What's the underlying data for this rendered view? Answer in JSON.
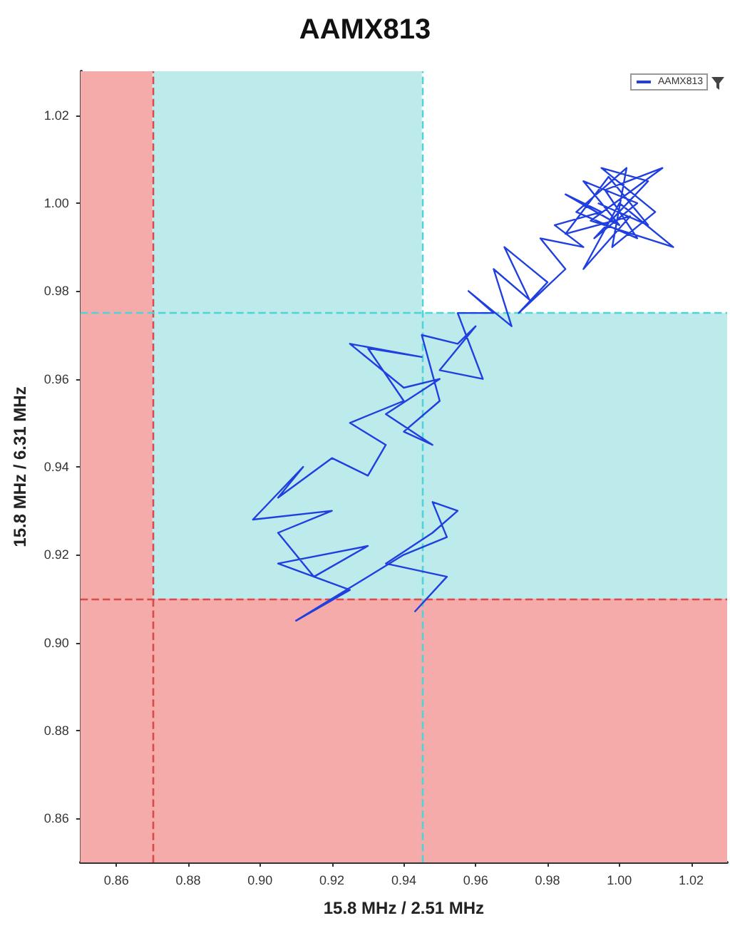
{
  "chart_data": {
    "type": "line",
    "title": "AAMX813",
    "xlabel": "15.8 MHz / 2.51 MHz",
    "ylabel": "15.8 MHz / 6.31 MHz",
    "xlim": [
      0.85,
      1.03
    ],
    "ylim": [
      0.85,
      1.03
    ],
    "xticks": [
      0.86,
      0.88,
      {
        "value": 0.9,
        "label": "0.90"
      },
      0.92,
      0.94,
      0.96,
      0.98,
      {
        "value": 1,
        "label": "1.00"
      },
      1.02
    ],
    "yticks": [
      0.86,
      0.88,
      {
        "value": 0.9,
        "label": "0.90"
      },
      0.92,
      0.94,
      0.96,
      0.98,
      {
        "value": 1,
        "label": "1.00"
      },
      1.02
    ],
    "grid": false,
    "legend": "top right",
    "marker": "none",
    "line_style": "solid",
    "bands": [
      {
        "axis": "x",
        "from": 0.87,
        "to": 0.945,
        "color": "#bdeaea"
      },
      {
        "axis": "y",
        "from": 0.91,
        "to": 0.975,
        "color": "#bdeaea"
      },
      {
        "axis": "x",
        "from": 0.85,
        "to": 0.87,
        "color": "#f4abaa"
      },
      {
        "axis": "y",
        "from": 0.85,
        "to": 0.91,
        "color": "#f4abaa"
      }
    ],
    "ref_lines": [
      {
        "axis": "x",
        "value": 0.87,
        "color": "#d94a4a",
        "line_style": "dashed"
      },
      {
        "axis": "x",
        "value": 0.945,
        "color": "#4fd3d6",
        "line_style": "dashed"
      },
      {
        "axis": "y",
        "value": 0.975,
        "color": "#4fd3d6",
        "line_style": "dashed"
      },
      {
        "axis": "y",
        "value": 0.91,
        "color": "#d94a4a",
        "line_style": "dashed"
      }
    ],
    "series": [
      {
        "name": "AAMX813",
        "color": "#1f3fe0",
        "x": [
          0.943,
          0.952,
          0.935,
          0.948,
          0.955,
          0.948,
          0.952,
          0.94,
          0.91,
          0.925,
          0.905,
          0.93,
          0.915,
          0.905,
          0.92,
          0.898,
          0.912,
          0.905,
          0.92,
          0.93,
          0.935,
          0.925,
          0.94,
          0.93,
          0.945,
          0.925,
          0.94,
          0.95,
          0.935,
          0.948,
          0.94,
          0.95,
          0.945,
          0.955,
          0.96,
          0.95,
          0.962,
          0.955,
          0.965,
          0.958,
          0.97,
          0.965,
          0.975,
          0.968,
          0.98,
          0.972,
          0.985,
          0.978,
          0.99,
          0.982,
          0.995,
          0.985,
          1.0,
          0.99,
          1.005,
          0.993,
          1.008,
          0.995,
          1.01,
          0.998,
          1.002,
          0.988,
          1.005,
          0.996,
          1.012,
          0.992,
          1.015,
          1.0,
          0.99,
          1.003,
          0.985,
          0.997,
          1.008,
          0.994
        ],
        "values": [
          0.907,
          0.915,
          0.918,
          0.925,
          0.93,
          0.932,
          0.924,
          0.92,
          0.905,
          0.912,
          0.918,
          0.922,
          0.915,
          0.925,
          0.93,
          0.928,
          0.94,
          0.933,
          0.942,
          0.938,
          0.945,
          0.95,
          0.955,
          0.967,
          0.965,
          0.968,
          0.958,
          0.96,
          0.952,
          0.945,
          0.948,
          0.955,
          0.97,
          0.968,
          0.972,
          0.962,
          0.96,
          0.975,
          0.975,
          0.98,
          0.972,
          0.985,
          0.978,
          0.99,
          0.982,
          0.975,
          0.985,
          0.992,
          0.99,
          0.995,
          0.998,
          1.002,
          0.995,
          1.005,
          1.0,
          0.992,
          1.005,
          1.008,
          0.998,
          0.99,
          1.008,
          0.998,
          0.992,
          1.003,
          1.008,
          0.996,
          0.99,
          1.0,
          0.985,
          0.997,
          0.993,
          1.006,
          0.995,
          1.0
        ]
      }
    ]
  }
}
